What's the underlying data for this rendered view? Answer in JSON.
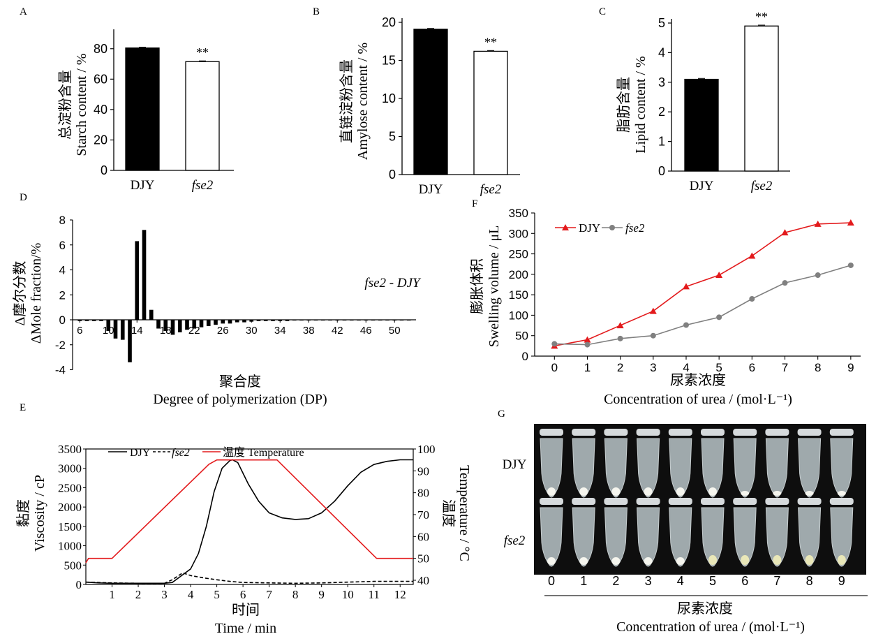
{
  "chart_data": [
    {
      "panel": "A",
      "type": "bar",
      "categories": [
        "DJY",
        "fse2"
      ],
      "values": [
        80.5,
        71.5
      ],
      "errors": [
        0.5,
        0.5
      ],
      "annotations": [
        "",
        "**"
      ],
      "ylabel_cn": "总淀粉含量",
      "ylabel_en": "Starch content / %",
      "ylim": [
        0,
        90
      ],
      "yticks": [
        0,
        20,
        40,
        60,
        80
      ],
      "bar_colors": [
        "#000000",
        "#ffffff"
      ]
    },
    {
      "panel": "B",
      "type": "bar",
      "categories": [
        "DJY",
        "fse2"
      ],
      "values": [
        19.1,
        16.2
      ],
      "errors": [
        0.1,
        0.1
      ],
      "annotations": [
        "",
        "**"
      ],
      "ylabel_cn": "直链淀粉含量",
      "ylabel_en": "Amylose content / %",
      "ylim": [
        0,
        20
      ],
      "yticks": [
        0,
        5,
        10,
        15,
        20
      ],
      "bar_colors": [
        "#000000",
        "#ffffff"
      ]
    },
    {
      "panel": "C",
      "type": "bar",
      "categories": [
        "DJY",
        "fse2"
      ],
      "values": [
        3.1,
        4.9
      ],
      "errors": [
        0.03,
        0.03
      ],
      "annotations": [
        "",
        "**"
      ],
      "ylabel_cn": "脂肪含量",
      "ylabel_en": "Lipid content / %",
      "ylim": [
        0,
        5
      ],
      "yticks": [
        0,
        1,
        2,
        3,
        4,
        5
      ],
      "bar_colors": [
        "#000000",
        "#ffffff"
      ]
    },
    {
      "panel": "D",
      "type": "bar",
      "x": [
        6,
        7,
        8,
        9,
        10,
        11,
        12,
        13,
        14,
        15,
        16,
        17,
        18,
        19,
        20,
        21,
        22,
        23,
        24,
        25,
        26,
        27,
        28,
        29,
        30,
        31,
        32,
        33,
        34,
        35,
        36,
        37,
        38,
        39,
        40,
        41,
        42,
        43,
        44,
        45,
        46,
        47,
        48,
        49,
        50,
        51,
        52
      ],
      "values": [
        -0.1,
        -0.1,
        -0.1,
        -0.1,
        -0.9,
        -1.5,
        -1.6,
        -3.4,
        6.3,
        7.2,
        0.8,
        -0.7,
        -0.9,
        -1.2,
        -1.0,
        -0.8,
        -0.7,
        -0.6,
        -0.5,
        -0.4,
        -0.3,
        -0.3,
        -0.2,
        -0.2,
        -0.15,
        -0.1,
        -0.1,
        -0.1,
        -0.1,
        -0.1,
        -0.05,
        -0.05,
        -0.05,
        -0.05,
        -0.05,
        -0.05,
        -0.05,
        -0.05,
        -0.05,
        -0.05,
        -0.05,
        -0.05,
        -0.05,
        -0.05,
        -0.05,
        -0.05,
        -0.05
      ],
      "xticks": [
        6,
        10,
        14,
        18,
        22,
        26,
        30,
        34,
        38,
        42,
        46,
        50
      ],
      "xlim": [
        5,
        53
      ],
      "ylim": [
        -4,
        8
      ],
      "yticks": [
        -4,
        -2,
        0,
        2,
        4,
        6,
        8
      ],
      "annotation": "fse2 - DJY",
      "ylabel_cn": "Δ摩尔分数",
      "ylabel_en": "ΔMole fraction/%",
      "xlabel_cn": "聚合度",
      "xlabel_en": "Degree of polymerization (DP)"
    },
    {
      "panel": "F",
      "type": "line",
      "x": [
        0,
        1,
        2,
        3,
        4,
        5,
        6,
        7,
        8,
        9
      ],
      "series": [
        {
          "name": "DJY",
          "values": [
            25,
            40,
            75,
            110,
            170,
            198,
            245,
            302,
            323,
            326
          ],
          "color": "#e31a1c",
          "marker": "triangle"
        },
        {
          "name": "fse2",
          "values": [
            30,
            28,
            43,
            50,
            76,
            95,
            140,
            179,
            198,
            222
          ],
          "color": "#808080",
          "marker": "circle"
        }
      ],
      "ylim": [
        0,
        350
      ],
      "yticks": [
        0,
        50,
        100,
        150,
        200,
        250,
        300,
        350
      ],
      "xlim": [
        -0.6,
        9.3
      ],
      "ylabel_cn": "膨胀体积",
      "ylabel_en": "Swelling volume / μL",
      "xlabel_cn": "尿素浓度",
      "xlabel_en": "Concentration of urea / (mol·L⁻¹)",
      "legend_position": "top-left"
    },
    {
      "panel": "E",
      "type": "line",
      "xlim": [
        0,
        12.5
      ],
      "xticks": [
        1,
        2,
        3,
        4,
        5,
        6,
        7,
        8,
        9,
        10,
        11,
        12
      ],
      "ylim_left": [
        0,
        3500
      ],
      "yticks_left": [
        0,
        500,
        1000,
        1500,
        2000,
        2500,
        3000,
        3500
      ],
      "ylim_right": [
        40,
        100
      ],
      "yticks_right": [
        40,
        50,
        60,
        70,
        80,
        90,
        100
      ],
      "series": [
        {
          "name": "DJY",
          "axis": "left",
          "style": "solid",
          "color": "#000000",
          "x": [
            0,
            0.5,
            1,
            2,
            3,
            3.3,
            3.6,
            4,
            4.3,
            4.6,
            4.9,
            5.2,
            5.5,
            5.6,
            5.8,
            6.2,
            6.6,
            7,
            7.5,
            8,
            8.5,
            9,
            9.5,
            10,
            10.5,
            11,
            11.5,
            12,
            12.5
          ],
          "values": [
            60,
            40,
            30,
            30,
            30,
            50,
            200,
            400,
            800,
            1500,
            2400,
            3000,
            3200,
            3220,
            3150,
            2600,
            2150,
            1850,
            1720,
            1680,
            1700,
            1850,
            2150,
            2550,
            2900,
            3100,
            3180,
            3220,
            3220
          ]
        },
        {
          "name": "fse2",
          "axis": "left",
          "style": "dashed",
          "color": "#000000",
          "x": [
            0,
            1,
            2,
            3,
            3.3,
            3.7,
            4,
            4.5,
            5,
            5.5,
            6,
            7,
            8,
            9,
            10,
            11,
            12,
            12.5
          ],
          "values": [
            60,
            40,
            30,
            30,
            120,
            300,
            230,
            170,
            120,
            80,
            50,
            40,
            30,
            40,
            60,
            80,
            80,
            80
          ]
        },
        {
          "name": "温度 Temperature",
          "axis": "right",
          "style": "solid",
          "color": "#e31a1c",
          "x": [
            0,
            0.1,
            0.8,
            1.0,
            4.7,
            5.0,
            7.3,
            11.1,
            12.5
          ],
          "values": [
            48,
            50,
            50,
            50,
            93,
            95,
            95,
            50,
            50
          ]
        }
      ],
      "ylabel_left_cn": "黏度",
      "ylabel_left_en": "Viscosity / cP",
      "ylabel_right_cn": "温度",
      "ylabel_right_en": "Temperature / °C",
      "xlabel_cn": "时间",
      "xlabel_en": "Time / min"
    }
  ],
  "panel_labels": {
    "A": "A",
    "B": "B",
    "C": "C",
    "D": "D",
    "E": "E",
    "F": "F",
    "G": "G"
  },
  "photo_g": {
    "row_labels": [
      "DJY",
      "fse2"
    ],
    "tube_labels": [
      "0",
      "1",
      "2",
      "3",
      "4",
      "5",
      "6",
      "7",
      "8",
      "9"
    ],
    "xlabel_cn": "尿素浓度",
    "xlabel_en": "Concentration of urea / (mol·L⁻¹)"
  }
}
